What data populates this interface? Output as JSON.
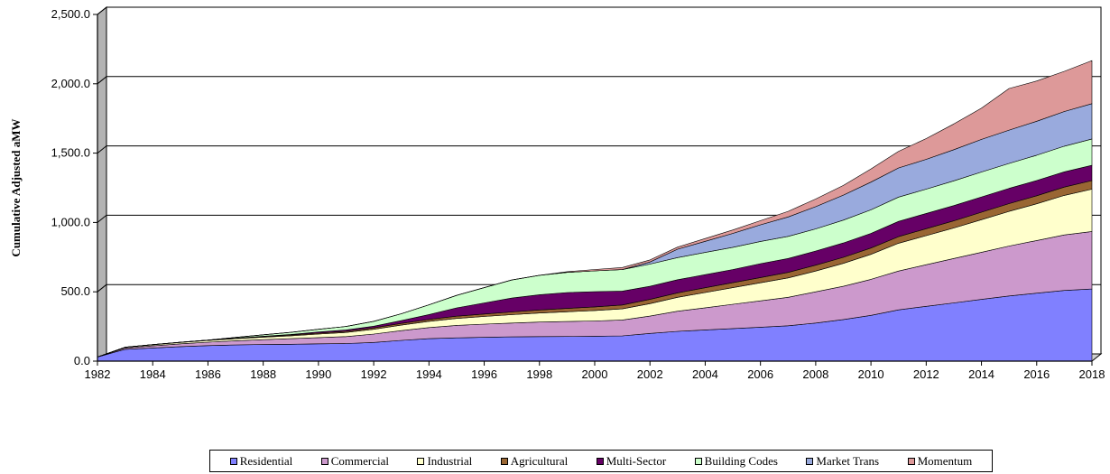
{
  "chart_data": {
    "type": "area",
    "stacked": true,
    "title": "",
    "xlabel": "",
    "ylabel": "Cumulative Adjusted aMW",
    "ylim": [
      0,
      2500
    ],
    "yticks": [
      "0.0",
      "500.0",
      "1,000.0",
      "1,500.0",
      "2,000.0",
      "2,500.0"
    ],
    "xlim": [
      1982,
      2018
    ],
    "xticks": [
      "1982",
      "1984",
      "1986",
      "1988",
      "1990",
      "1992",
      "1994",
      "1996",
      "1998",
      "2000",
      "2002",
      "2004",
      "2006",
      "2008",
      "2010",
      "2012",
      "2014",
      "2016",
      "2018"
    ],
    "grid": "horizontal",
    "legend_position": "bottom",
    "x": [
      1982,
      1983,
      1984,
      1985,
      1986,
      1987,
      1988,
      1989,
      1990,
      1991,
      1992,
      1993,
      1994,
      1995,
      1996,
      1997,
      1998,
      1999,
      2000,
      2001,
      2002,
      2003,
      2004,
      2005,
      2006,
      2007,
      2008,
      2009,
      2010,
      2011,
      2012,
      2013,
      2014,
      2015,
      2016,
      2017,
      2018
    ],
    "series": [
      {
        "name": "Residential",
        "color": "#8080ff",
        "values": [
          30,
          85,
          95,
          105,
          112,
          117,
          120,
          122,
          125,
          127,
          135,
          150,
          162,
          168,
          172,
          175,
          177,
          178,
          180,
          182,
          200,
          215,
          225,
          235,
          245,
          255,
          275,
          300,
          330,
          370,
          395,
          420,
          445,
          470,
          490,
          510,
          520
        ]
      },
      {
        "name": "Commercial",
        "color": "#cc99cc",
        "values": [
          0,
          10,
          15,
          20,
          25,
          30,
          35,
          40,
          45,
          50,
          60,
          70,
          80,
          90,
          95,
          100,
          105,
          108,
          110,
          115,
          125,
          145,
          160,
          175,
          190,
          205,
          225,
          240,
          260,
          280,
          300,
          320,
          340,
          360,
          380,
          400,
          415
        ]
      },
      {
        "name": "Industrial",
        "color": "#ffffcc",
        "values": [
          0,
          5,
          8,
          10,
          12,
          15,
          18,
          20,
          25,
          30,
          35,
          40,
          45,
          50,
          55,
          60,
          65,
          70,
          75,
          80,
          90,
          100,
          110,
          120,
          130,
          140,
          150,
          165,
          180,
          200,
          210,
          220,
          235,
          250,
          265,
          285,
          305
        ]
      },
      {
        "name": "Agricultural",
        "color": "#996633",
        "values": [
          0,
          0,
          1,
          2,
          3,
          4,
          5,
          6,
          7,
          8,
          10,
          12,
          14,
          16,
          18,
          20,
          22,
          24,
          26,
          28,
          30,
          32,
          34,
          36,
          38,
          40,
          42,
          44,
          46,
          48,
          50,
          52,
          54,
          56,
          58,
          60,
          62
        ]
      },
      {
        "name": "Multi-Sector",
        "color": "#660066",
        "values": [
          0,
          0,
          0,
          0,
          0,
          0,
          2,
          5,
          8,
          10,
          12,
          20,
          35,
          60,
          80,
          100,
          110,
          115,
          110,
          100,
          95,
          95,
          95,
          95,
          100,
          100,
          102,
          103,
          105,
          110,
          110,
          110,
          110,
          110,
          110,
          110,
          110
        ]
      },
      {
        "name": "Building Codes",
        "color": "#ccffcc",
        "values": [
          0,
          0,
          0,
          0,
          0,
          5,
          10,
          15,
          20,
          25,
          35,
          50,
          70,
          90,
          110,
          130,
          140,
          145,
          150,
          155,
          160,
          160,
          160,
          160,
          160,
          160,
          160,
          165,
          170,
          175,
          175,
          178,
          180,
          180,
          182,
          185,
          190
        ]
      },
      {
        "name": "Market Trans",
        "color": "#99aadd",
        "values": [
          0,
          0,
          0,
          0,
          0,
          0,
          0,
          0,
          0,
          0,
          0,
          0,
          0,
          0,
          0,
          0,
          0,
          0,
          0,
          0,
          15,
          60,
          80,
          100,
          120,
          140,
          160,
          180,
          200,
          210,
          215,
          225,
          235,
          240,
          245,
          250,
          255
        ]
      },
      {
        "name": "Momentum",
        "color": "#dd9999",
        "values": [
          0,
          0,
          0,
          0,
          0,
          0,
          0,
          0,
          0,
          0,
          0,
          0,
          0,
          0,
          0,
          0,
          0,
          5,
          10,
          15,
          15,
          15,
          20,
          25,
          30,
          40,
          55,
          70,
          95,
          120,
          150,
          185,
          225,
          300,
          290,
          290,
          310
        ]
      }
    ]
  }
}
